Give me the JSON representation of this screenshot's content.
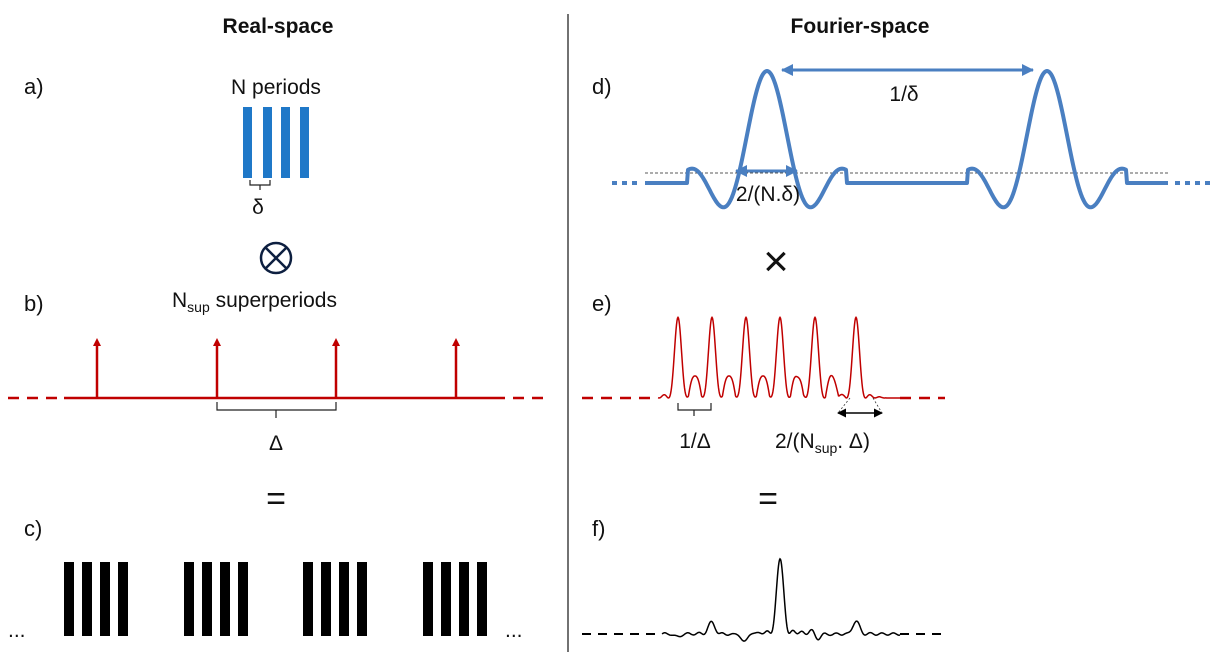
{
  "headers": {
    "left": "Real-space",
    "right": "Fourier-space"
  },
  "panels": {
    "a": "a)",
    "b": "b)",
    "c": "c)",
    "d": "d)",
    "e": "e)",
    "f": "f)"
  },
  "labels": {
    "n_periods": "N periods",
    "delta_small": "δ",
    "n_sup_N": "N",
    "n_sup_sub": "sup",
    "superperiods": " superperiods",
    "delta_big": "Δ",
    "equals": "=",
    "ellipsis": "...",
    "one_over_delta_small": "1/δ",
    "two_over_N_delta": "2/(N.δ)",
    "times": "×",
    "one_over_delta_big": "1/Δ",
    "two_over_Nsup_pre": "2/(N",
    "two_over_Nsup_sub": "sup",
    "two_over_Nsup_post": ". Δ)"
  },
  "colors": {
    "blue": "#1f78c8",
    "curve_blue": "#4a7fc1",
    "red": "#c00000",
    "black": "#000000",
    "divider": "#444444"
  }
}
